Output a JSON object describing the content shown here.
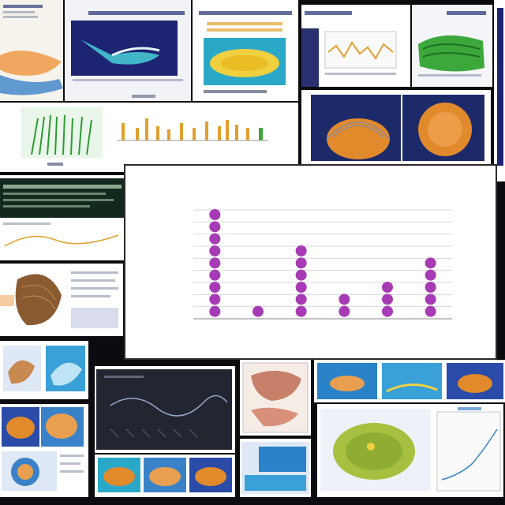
{
  "chart_data": {
    "type": "scatter",
    "title": "",
    "xlabel": "",
    "ylabel": "",
    "categories": [
      "",
      "",
      "",
      "",
      "",
      ""
    ],
    "values": [
      9,
      1,
      6,
      2,
      3,
      5
    ],
    "ylim": [
      0,
      9
    ],
    "marker_color": "#a73bb5",
    "grid": true
  },
  "colors": {
    "background": "#0b0b10",
    "panel": "#f4f5f9",
    "accent_blue": "#2d3b7a",
    "accent_orange": "#e08a2c",
    "accent_green": "#3ca83c",
    "accent_teal": "#2aa8c8"
  }
}
